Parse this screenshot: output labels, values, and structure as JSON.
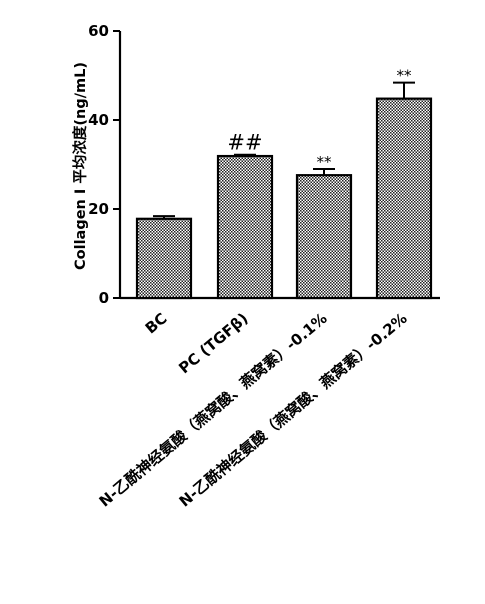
{
  "chart_data": {
    "type": "bar",
    "title": "",
    "xlabel": "",
    "ylabel": "Collagen I 平均浓度(ng/mL)",
    "ylim": [
      0,
      60
    ],
    "yticks": [
      0,
      20,
      40,
      60
    ],
    "grid": false,
    "categories": [
      "BC",
      "PC (TGFβ)",
      "N-乙酰神经氨酸（燕窝酸、燕窝素）-0.1%",
      "N-乙酰神经氨酸（燕窝酸、燕窝素）-0.2%"
    ],
    "values": [
      17.8,
      31.9,
      27.6,
      44.8
    ],
    "errors": [
      0.6,
      0.3,
      1.4,
      3.6
    ],
    "annotations": [
      "",
      "##",
      "**",
      "**"
    ],
    "bar_fill": "crosshatch-dots-gray",
    "colors": {
      "bar_fill_light": "#ffffff",
      "bar_fill_dark": "#222222",
      "axis": "#000000"
    }
  }
}
